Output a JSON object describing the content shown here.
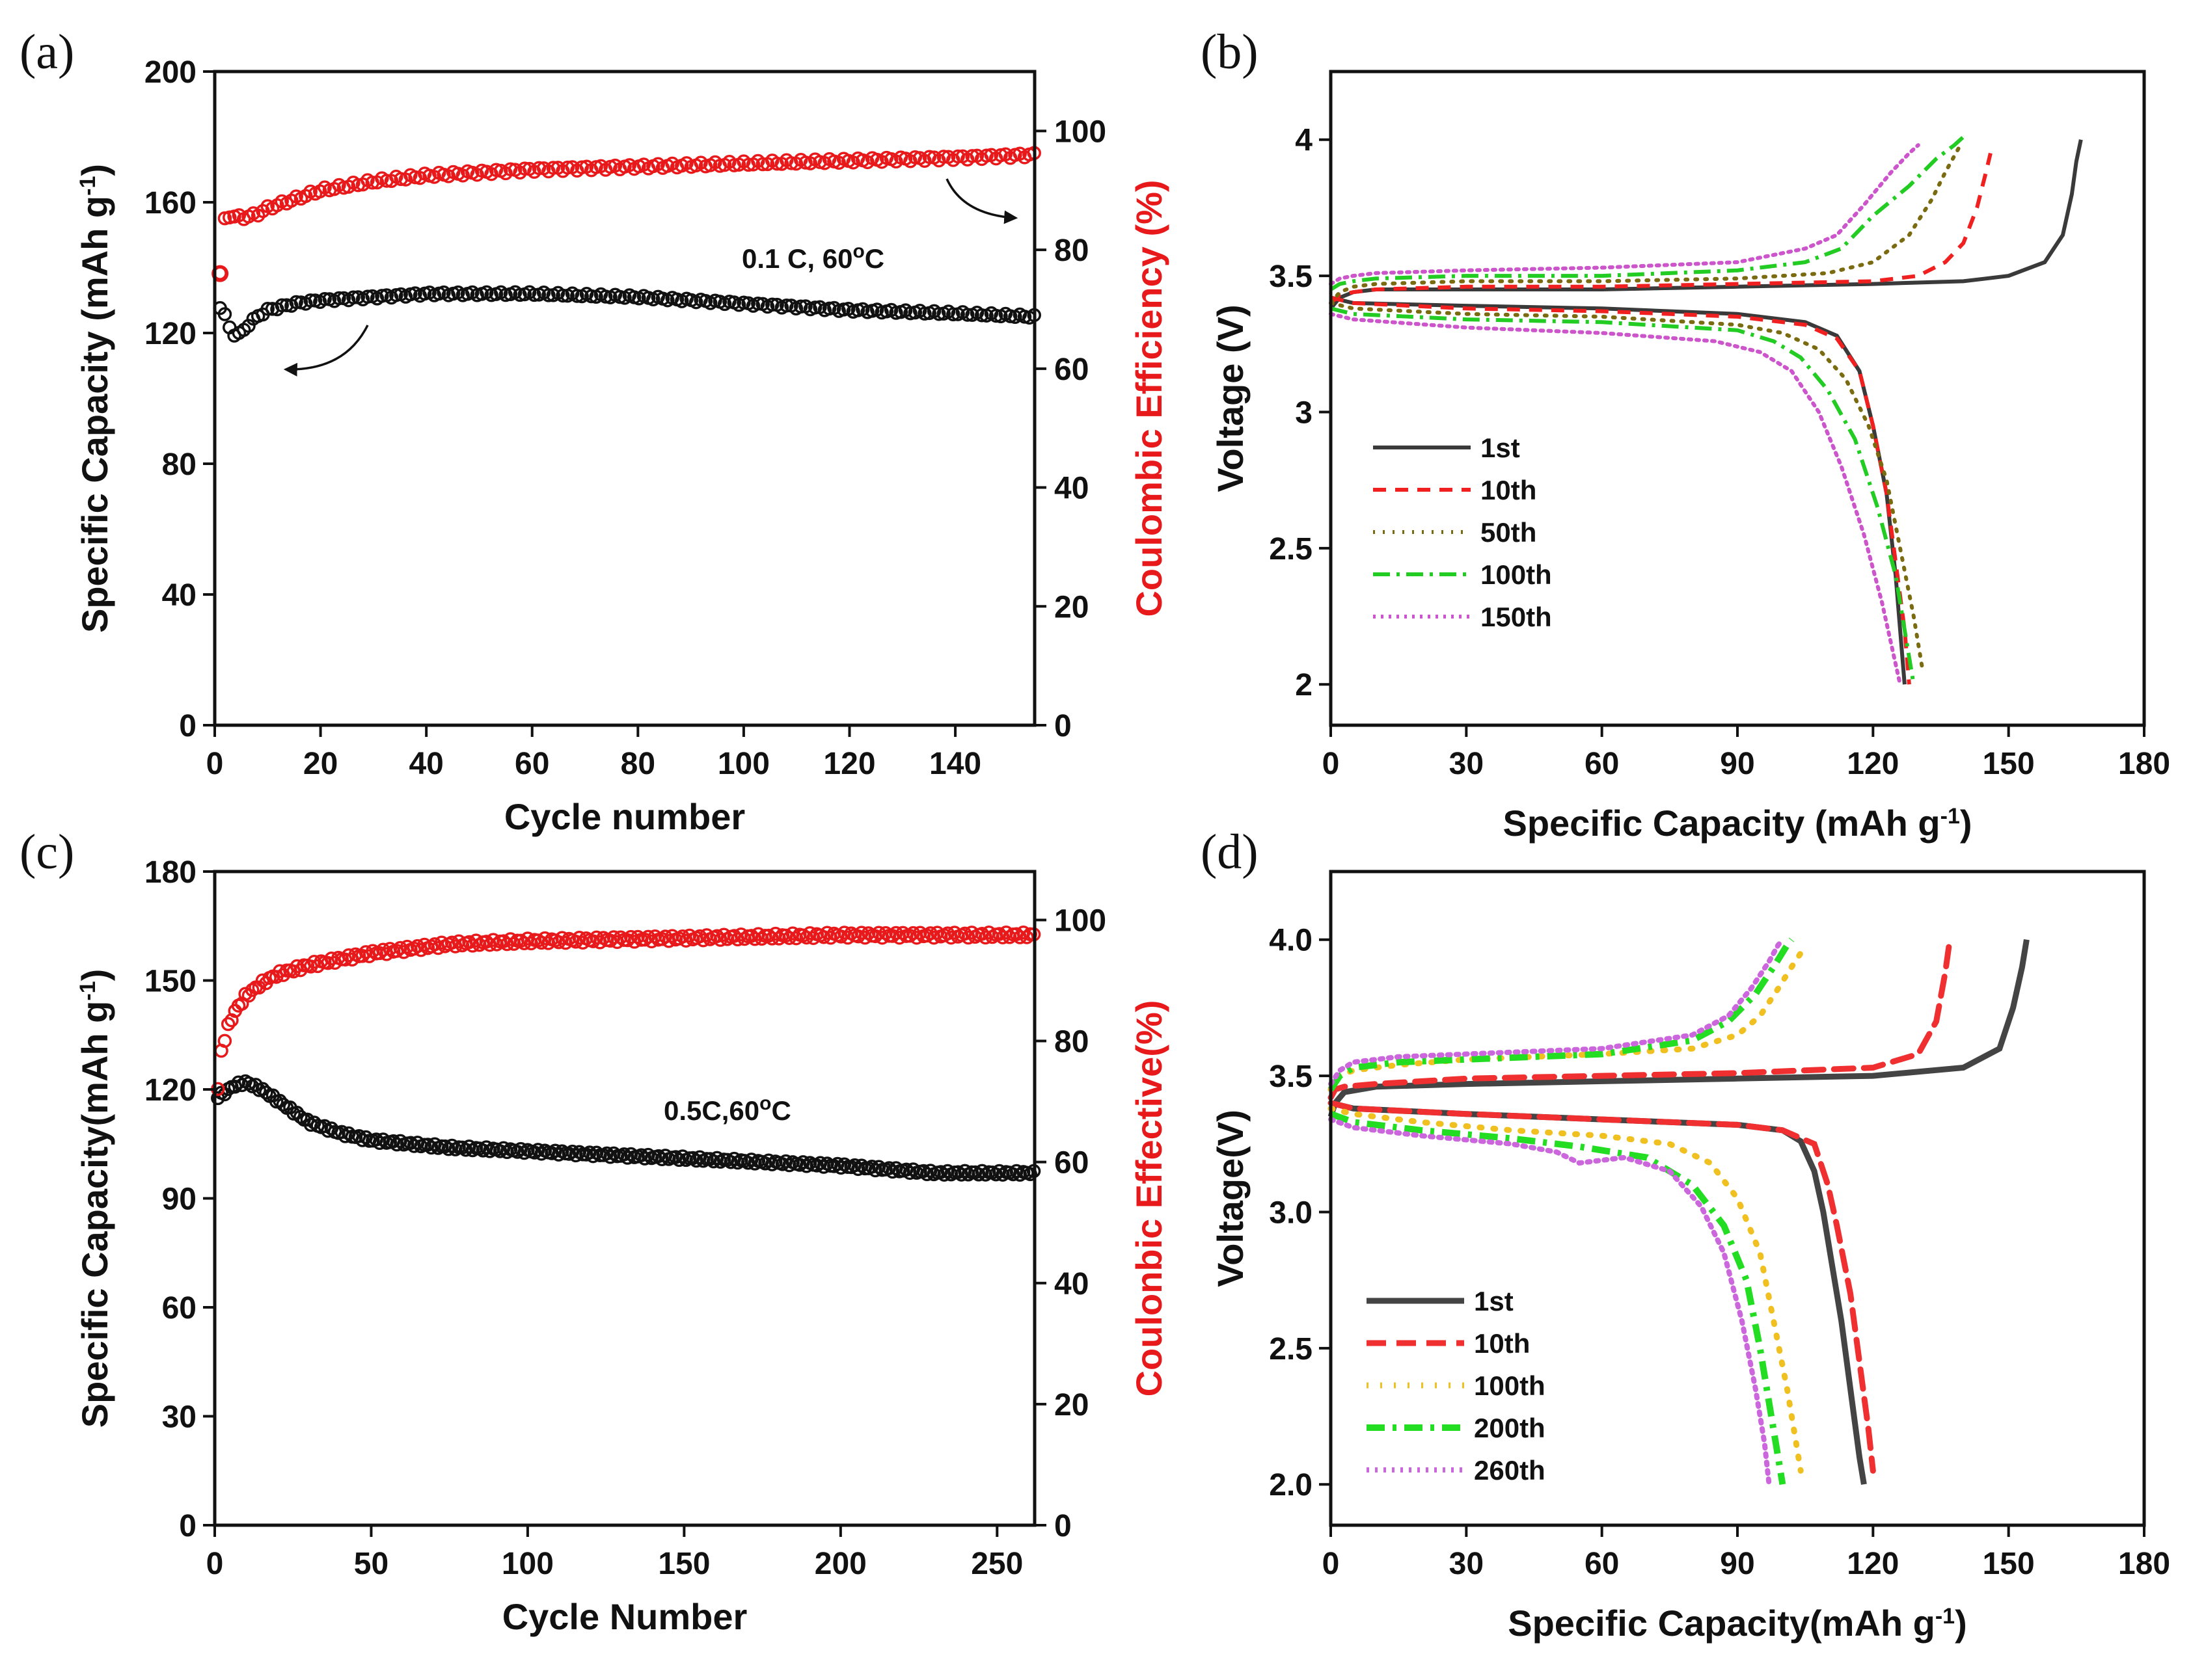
{
  "chart_data": [
    {
      "id": "a",
      "panel_label": "(a)",
      "type": "scatter",
      "xlabel": "Cycle number",
      "ylabel_left": "Specific Capacity (mAh g",
      "ylabel_right": "Coulombic Efficiency (%)",
      "unit_sup": "-1",
      "annotation": "0.1 C, 60",
      "degree": "o",
      "annotation_tail": "C",
      "xlim": [
        0,
        155
      ],
      "ylim_left": [
        0,
        200
      ],
      "ylim_right": [
        0,
        110
      ],
      "xticks": [
        "0",
        "20",
        "40",
        "60",
        "80",
        "100",
        "120",
        "140"
      ],
      "yticks_left": [
        "0",
        "40",
        "80",
        "120",
        "160",
        "200"
      ],
      "yticks_right": [
        "0",
        "20",
        "40",
        "60",
        "80",
        "100"
      ],
      "series": [
        {
          "name": "Specific Capacity",
          "color": "#111111",
          "axis": "left",
          "x": [
            1,
            2,
            3,
            4,
            5,
            6,
            8,
            10,
            15,
            20,
            30,
            40,
            60,
            80,
            100,
            120,
            140,
            155
          ],
          "y": [
            128,
            125,
            121,
            119,
            120,
            122,
            125,
            127,
            129,
            130,
            131,
            132,
            132,
            131,
            129,
            127,
            126,
            125
          ]
        },
        {
          "name": "Coulombic Efficiency",
          "color": "#e8191b",
          "axis": "right",
          "x": [
            1,
            2,
            4,
            6,
            8,
            10,
            15,
            20,
            30,
            40,
            60,
            80,
            100,
            120,
            140,
            155
          ],
          "y": [
            76,
            86,
            85.5,
            85.5,
            86,
            87,
            88.5,
            90,
            91.5,
            92.5,
            93.5,
            94,
            94.5,
            95,
            95.5,
            96
          ]
        }
      ]
    },
    {
      "id": "b",
      "panel_label": "(b)",
      "type": "line",
      "xlabel": "Specific Capacity (mAh g",
      "unit_sup": "-1",
      "xlabel_tail": ")",
      "ylabel": "Voltage (V)",
      "xlim": [
        0,
        180
      ],
      "ylim": [
        1.85,
        4.25
      ],
      "xticks": [
        "0",
        "30",
        "60",
        "90",
        "120",
        "150",
        "180"
      ],
      "yticks": [
        "2",
        "2.5",
        "3",
        "3.5",
        "4"
      ],
      "series": [
        {
          "name": "1st",
          "color": "#3a3a3a",
          "dash": "none",
          "charge_x": [
            0,
            2,
            5,
            10,
            30,
            60,
            90,
            120,
            140,
            150,
            158,
            162,
            164,
            165,
            166
          ],
          "charge_y": [
            3.38,
            3.42,
            3.44,
            3.45,
            3.45,
            3.45,
            3.46,
            3.47,
            3.48,
            3.5,
            3.55,
            3.65,
            3.8,
            3.92,
            4.0
          ],
          "discharge_x": [
            0,
            5,
            30,
            60,
            90,
            105,
            112,
            117,
            120,
            123,
            125,
            126,
            127
          ],
          "discharge_y": [
            3.42,
            3.4,
            3.39,
            3.38,
            3.36,
            3.33,
            3.28,
            3.15,
            2.95,
            2.7,
            2.4,
            2.2,
            2.0
          ]
        },
        {
          "name": "10th",
          "color": "#f02020",
          "dash": "20,14",
          "charge_x": [
            0,
            2,
            5,
            10,
            30,
            60,
            90,
            120,
            130,
            136,
            140,
            143,
            145,
            146
          ],
          "charge_y": [
            3.4,
            3.43,
            3.44,
            3.45,
            3.46,
            3.46,
            3.47,
            3.48,
            3.5,
            3.55,
            3.62,
            3.75,
            3.88,
            3.95
          ],
          "discharge_x": [
            0,
            5,
            30,
            60,
            90,
            105,
            112,
            117,
            120,
            123,
            125,
            127,
            128
          ],
          "discharge_y": [
            3.42,
            3.4,
            3.38,
            3.37,
            3.35,
            3.32,
            3.27,
            3.15,
            2.95,
            2.7,
            2.45,
            2.2,
            2.0
          ]
        },
        {
          "name": "50th",
          "color": "#7a6a10",
          "dash": "3,12",
          "charge_x": [
            0,
            2,
            5,
            10,
            30,
            60,
            90,
            110,
            120,
            128,
            133,
            136,
            139
          ],
          "charge_y": [
            3.4,
            3.44,
            3.46,
            3.47,
            3.48,
            3.48,
            3.49,
            3.51,
            3.55,
            3.65,
            3.78,
            3.88,
            3.97
          ],
          "discharge_x": [
            0,
            5,
            30,
            60,
            90,
            100,
            108,
            114,
            119,
            123,
            126,
            129,
            131
          ],
          "discharge_y": [
            3.4,
            3.38,
            3.36,
            3.35,
            3.32,
            3.29,
            3.23,
            3.12,
            2.95,
            2.75,
            2.5,
            2.25,
            2.05
          ]
        },
        {
          "name": "100th",
          "color": "#22cc22",
          "dash": "26,10,5,10",
          "charge_x": [
            0,
            2,
            5,
            10,
            30,
            60,
            90,
            105,
            113,
            120,
            128,
            134,
            138,
            140
          ],
          "charge_y": [
            3.45,
            3.47,
            3.48,
            3.49,
            3.5,
            3.5,
            3.52,
            3.55,
            3.6,
            3.72,
            3.83,
            3.93,
            3.98,
            4.01
          ],
          "discharge_x": [
            0,
            5,
            30,
            60,
            90,
            98,
            104,
            110,
            116,
            121,
            125,
            127,
            129
          ],
          "discharge_y": [
            3.38,
            3.36,
            3.34,
            3.33,
            3.3,
            3.26,
            3.2,
            3.08,
            2.9,
            2.65,
            2.4,
            2.2,
            2.0
          ]
        },
        {
          "name": "150th",
          "color": "#cc55cc",
          "dash": "4,8",
          "charge_x": [
            0,
            2,
            5,
            10,
            30,
            60,
            90,
            105,
            112,
            118,
            124,
            128,
            130
          ],
          "charge_y": [
            3.47,
            3.49,
            3.5,
            3.51,
            3.52,
            3.53,
            3.55,
            3.6,
            3.65,
            3.76,
            3.88,
            3.95,
            3.98
          ],
          "discharge_x": [
            0,
            5,
            30,
            60,
            85,
            95,
            102,
            108,
            113,
            118,
            122,
            124,
            126
          ],
          "discharge_y": [
            3.36,
            3.34,
            3.31,
            3.29,
            3.26,
            3.22,
            3.15,
            3.0,
            2.8,
            2.55,
            2.3,
            2.15,
            2.0
          ]
        }
      ]
    },
    {
      "id": "c",
      "panel_label": "(c)",
      "type": "scatter",
      "xlabel": "Cycle Number",
      "ylabel_left": "Specific Capacity(mAh g",
      "ylabel_right": "Coulonbic Effective(%)",
      "unit_sup": "-1",
      "annotation": "0.5C,60",
      "degree": "o",
      "annotation_tail": "C",
      "xlim": [
        0,
        262
      ],
      "ylim_left": [
        0,
        180
      ],
      "ylim_right": [
        0,
        108
      ],
      "xticks": [
        "0",
        "50",
        "100",
        "150",
        "200",
        "250"
      ],
      "yticks_left": [
        "0",
        "30",
        "60",
        "90",
        "120",
        "150",
        "180"
      ],
      "yticks_right": [
        "0",
        "20",
        "40",
        "60",
        "80",
        "100"
      ],
      "series": [
        {
          "name": "Specific Capacity",
          "color": "#111111",
          "axis": "left",
          "x": [
            1,
            3,
            6,
            10,
            15,
            20,
            25,
            30,
            40,
            50,
            75,
            100,
            150,
            200,
            230,
            262
          ],
          "y": [
            118,
            119,
            121,
            122,
            120,
            117,
            114,
            111,
            108,
            106,
            104,
            103,
            101,
            99,
            97,
            97
          ]
        },
        {
          "name": "Coulombic Effective",
          "color": "#e8191b",
          "axis": "right",
          "x": [
            1,
            2,
            4,
            6,
            8,
            10,
            15,
            20,
            30,
            40,
            50,
            75,
            100,
            150,
            200,
            262
          ],
          "y": [
            72,
            78,
            82,
            84.5,
            86,
            87.5,
            89.5,
            91,
            92.5,
            93.5,
            94.5,
            96,
            96.5,
            97,
            97.5,
            97.5
          ]
        }
      ]
    },
    {
      "id": "d",
      "panel_label": "(d)",
      "type": "line",
      "xlabel": "Specific Capacity(mAh g",
      "unit_sup": "-1",
      "xlabel_tail": ")",
      "ylabel": "Voltage(V)",
      "xlim": [
        0,
        180
      ],
      "ylim": [
        1.85,
        4.25
      ],
      "xticks": [
        "0",
        "30",
        "60",
        "90",
        "120",
        "150",
        "180"
      ],
      "yticks": [
        "2.0",
        "2.5",
        "3.0",
        "3.5",
        "4.0"
      ],
      "series": [
        {
          "name": "1st",
          "color": "#444444",
          "dash": "none",
          "width": 9,
          "charge_x": [
            0,
            1,
            3,
            10,
            30,
            60,
            90,
            120,
            140,
            148,
            151,
            153,
            154
          ],
          "charge_y": [
            3.35,
            3.4,
            3.44,
            3.46,
            3.47,
            3.48,
            3.49,
            3.5,
            3.53,
            3.6,
            3.75,
            3.9,
            4.0
          ],
          "discharge_x": [
            0,
            5,
            30,
            60,
            90,
            100,
            104,
            107,
            109,
            111,
            113,
            115,
            117,
            118
          ],
          "discharge_y": [
            3.4,
            3.38,
            3.36,
            3.34,
            3.32,
            3.3,
            3.26,
            3.15,
            3.0,
            2.8,
            2.6,
            2.35,
            2.1,
            2.0
          ]
        },
        {
          "name": "10th",
          "color": "#f03030",
          "dash": "30,16",
          "width": 9,
          "charge_x": [
            0,
            1,
            3,
            10,
            30,
            60,
            90,
            120,
            130,
            134,
            136,
            137
          ],
          "charge_y": [
            3.42,
            3.45,
            3.46,
            3.47,
            3.49,
            3.5,
            3.51,
            3.53,
            3.58,
            3.7,
            3.88,
            4.0
          ],
          "discharge_x": [
            0,
            5,
            30,
            60,
            90,
            100,
            107,
            110,
            112,
            115,
            117,
            119,
            120
          ],
          "discharge_y": [
            3.4,
            3.38,
            3.36,
            3.34,
            3.32,
            3.3,
            3.25,
            3.1,
            2.95,
            2.7,
            2.45,
            2.2,
            2.05
          ]
        },
        {
          "name": "100th",
          "color": "#f0c020",
          "dash": "3,18",
          "width": 9,
          "charge_x": [
            0,
            2,
            5,
            15,
            30,
            60,
            80,
            90,
            95,
            99,
            102,
            104
          ],
          "charge_y": [
            3.45,
            3.5,
            3.52,
            3.54,
            3.56,
            3.58,
            3.6,
            3.65,
            3.72,
            3.82,
            3.9,
            3.95
          ],
          "discharge_x": [
            0,
            5,
            20,
            40,
            60,
            75,
            84,
            90,
            95,
            98,
            101,
            103,
            104
          ],
          "discharge_y": [
            3.38,
            3.36,
            3.33,
            3.3,
            3.28,
            3.25,
            3.18,
            3.05,
            2.85,
            2.6,
            2.35,
            2.15,
            2.05
          ]
        },
        {
          "name": "200th",
          "color": "#22dd22",
          "dash": "28,12,6,12",
          "width": 10,
          "charge_x": [
            0,
            2,
            5,
            15,
            30,
            60,
            80,
            88,
            94,
            98,
            101,
            102
          ],
          "charge_y": [
            3.45,
            3.5,
            3.53,
            3.55,
            3.56,
            3.58,
            3.63,
            3.7,
            3.8,
            3.9,
            3.98,
            4.0
          ],
          "discharge_x": [
            0,
            5,
            20,
            40,
            55,
            70,
            80,
            87,
            92,
            95,
            97,
            99,
            100
          ],
          "discharge_y": [
            3.36,
            3.33,
            3.3,
            3.27,
            3.24,
            3.2,
            3.1,
            2.95,
            2.75,
            2.5,
            2.3,
            2.1,
            2.0
          ]
        },
        {
          "name": "260th",
          "color": "#cc66dd",
          "dash": "4,9",
          "width": 8,
          "charge_x": [
            0,
            2,
            5,
            15,
            30,
            60,
            80,
            88,
            93,
            97,
            99,
            100
          ],
          "charge_y": [
            3.47,
            3.52,
            3.55,
            3.57,
            3.58,
            3.6,
            3.65,
            3.72,
            3.82,
            3.92,
            3.98,
            4.0
          ],
          "discharge_x": [
            0,
            5,
            20,
            40,
            50,
            55,
            65,
            75,
            82,
            87,
            91,
            94,
            96,
            97
          ],
          "discharge_y": [
            3.34,
            3.31,
            3.28,
            3.25,
            3.22,
            3.18,
            3.2,
            3.15,
            3.02,
            2.85,
            2.6,
            2.35,
            2.15,
            2.0
          ]
        }
      ]
    }
  ]
}
